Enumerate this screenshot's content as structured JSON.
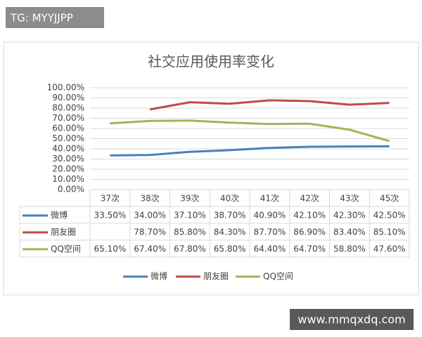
{
  "chart_data": {
    "type": "line",
    "title": "社交应用使用率变化",
    "categories": [
      "37次",
      "38次",
      "39次",
      "40次",
      "41次",
      "42次",
      "43次",
      "45次"
    ],
    "series": [
      {
        "name": "微博",
        "color": "#4a7ebb",
        "values": [
          33.5,
          34.0,
          37.1,
          38.7,
          40.9,
          42.1,
          42.3,
          42.5
        ],
        "value_labels": [
          "33.50%",
          "34.00%",
          "37.10%",
          "38.70%",
          "40.90%",
          "42.10%",
          "42.30%",
          "42.50%"
        ]
      },
      {
        "name": "朋友圈",
        "color": "#be4b48",
        "values": [
          null,
          78.7,
          85.8,
          84.3,
          87.7,
          86.9,
          83.4,
          85.1
        ],
        "value_labels": [
          null,
          "78.70%",
          "85.80%",
          "84.30%",
          "87.70%",
          "86.90%",
          "83.40%",
          "85.10%"
        ]
      },
      {
        "name": "QQ空间",
        "color": "#98b954",
        "values": [
          65.1,
          67.4,
          67.8,
          65.8,
          64.4,
          64.7,
          58.8,
          47.6
        ],
        "value_labels": [
          "65.10%",
          "67.40%",
          "67.80%",
          "65.80%",
          "64.40%",
          "64.70%",
          "58.80%",
          "47.60%"
        ]
      }
    ],
    "ylim": [
      0,
      100
    ],
    "yticks": [
      {
        "value": 0,
        "label": "0.00%"
      },
      {
        "value": 10,
        "label": "10.00%"
      },
      {
        "value": 20,
        "label": "20.00%"
      },
      {
        "value": 30,
        "label": "30.00%"
      },
      {
        "value": 40,
        "label": "40.00%"
      },
      {
        "value": 50,
        "label": "50.00%"
      },
      {
        "value": 60,
        "label": "60.00%"
      },
      {
        "value": 70,
        "label": "70.00%"
      },
      {
        "value": 80,
        "label": "80.00%"
      },
      {
        "value": 90,
        "label": "90.00%"
      },
      {
        "value": 100,
        "label": "100.00%"
      }
    ],
    "grid": true,
    "legend": "bottom",
    "data_table": true
  },
  "watermarks": [
    "TG: MYYJJPP",
    "www.mmqxdq.com"
  ]
}
